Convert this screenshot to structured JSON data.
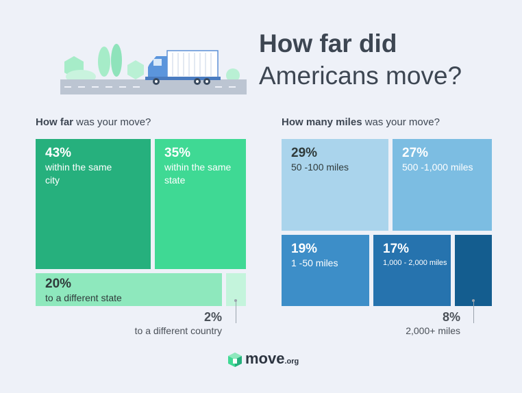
{
  "header": {
    "title_line1": "How far did",
    "title_line2": "Americans move?"
  },
  "colors": {
    "background": "#eef1f8",
    "green_dark": "#26b07d",
    "green_mid": "#3fd994",
    "green_light": "#8ee8bd",
    "green_pale": "#c4f4dc",
    "blue_pale": "#aad4ec",
    "blue_light": "#7cbde2",
    "blue_mid": "#3d8ec8",
    "blue_dark": "#2673ae",
    "blue_navy": "#145d8f"
  },
  "chart_data": [
    {
      "type": "treemap",
      "subtitle_bold": "How far",
      "subtitle_rest": " was your move?",
      "series": [
        {
          "value": 43,
          "value_label": "43%",
          "label": "within the same city"
        },
        {
          "value": 35,
          "value_label": "35%",
          "label": "within the same state"
        },
        {
          "value": 20,
          "value_label": "20%",
          "label": "to a different state"
        },
        {
          "value": 2,
          "value_label": "2%",
          "label": "to a different country"
        }
      ]
    },
    {
      "type": "treemap",
      "subtitle_bold": "How many miles",
      "subtitle_rest": " was your move?",
      "series": [
        {
          "value": 29,
          "value_label": "29%",
          "label": "50 -100 miles"
        },
        {
          "value": 27,
          "value_label": "27%",
          "label": "500 -1,000 miles"
        },
        {
          "value": 19,
          "value_label": "19%",
          "label": "1 -50 miles"
        },
        {
          "value": 17,
          "value_label": "17%",
          "label": "1,000 - 2,000 miles"
        },
        {
          "value": 8,
          "value_label": "8%",
          "label": "2,000+ miles"
        }
      ]
    }
  ],
  "footer": {
    "logo_main": "move",
    "logo_suffix": ".org",
    "logo_icon": "box-icon"
  },
  "illustration": {
    "icon": "moving-truck-icon"
  }
}
